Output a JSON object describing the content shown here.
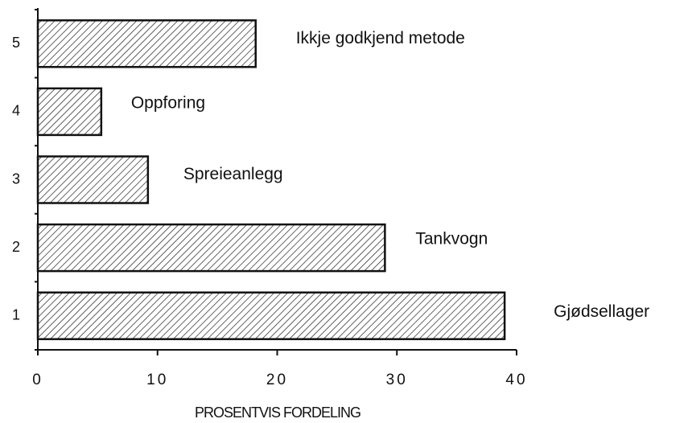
{
  "chart_data": {
    "type": "hbar",
    "categories": [
      "1",
      "2",
      "3",
      "4",
      "5"
    ],
    "values": [
      39,
      29,
      9.2,
      5.3,
      18.2
    ],
    "bar_labels": [
      "Gjødsellager",
      "Tankvogn",
      "Spreieanlegg",
      "Oppforing",
      "Ikkje godkjend metode"
    ],
    "color": "#111111",
    "xlim": [
      0,
      40
    ],
    "xticks": [
      0,
      10,
      20,
      30,
      40
    ],
    "xlabel": "PROSENTVIS FORDELING"
  }
}
